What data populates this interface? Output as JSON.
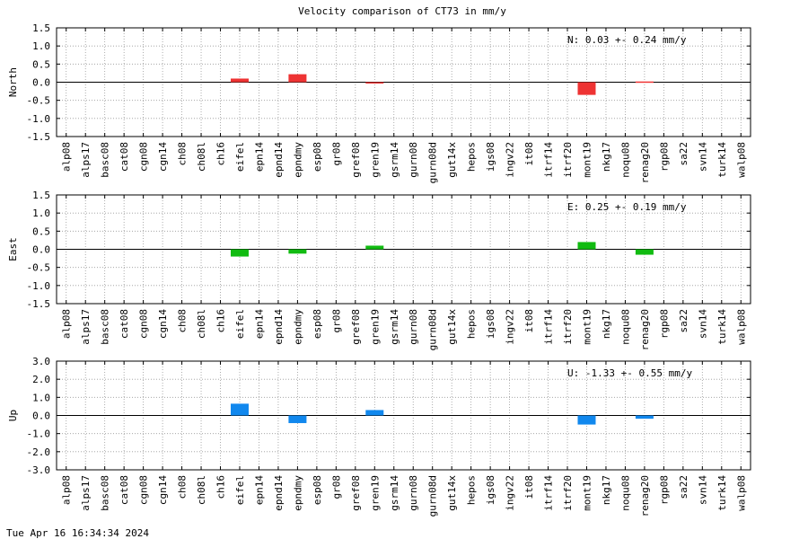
{
  "chart_data": {
    "title": "Velocity comparison of CT73 in mm/y",
    "type": "bar",
    "categories": [
      "alp08",
      "alps17",
      "basc08",
      "cat08",
      "cgn08",
      "cgn14",
      "ch08",
      "ch08l",
      "ch16",
      "eifel",
      "epn14",
      "epnd14",
      "epndmy",
      "esp08",
      "gr08",
      "gref08",
      "gren19",
      "gsrm14",
      "gurn08",
      "gurn08d",
      "gut14x",
      "hepos",
      "igs08",
      "ingv22",
      "it08",
      "itrf14",
      "itrf20",
      "mont19",
      "nkg17",
      "noqu08",
      "renag20",
      "rgp08",
      "sa22",
      "svn14",
      "turk14",
      "walp08"
    ],
    "grid": true,
    "panels": [
      {
        "ylabel": "North",
        "ylim": [
          -1.5,
          1.5
        ],
        "yticks": [
          "1.5",
          "1.0",
          "0.5",
          "0.0",
          "-0.5",
          "-1.0",
          "-1.5"
        ],
        "color": "#ee3333",
        "annotation": "N:   0.03 +-  0.24 mm/y",
        "values": [
          null,
          null,
          null,
          null,
          null,
          null,
          null,
          null,
          null,
          0.1,
          null,
          null,
          0.22,
          null,
          null,
          null,
          -0.02,
          null,
          null,
          null,
          null,
          null,
          null,
          null,
          null,
          null,
          null,
          -0.35,
          null,
          null,
          0.02,
          null,
          null,
          null,
          null,
          null
        ]
      },
      {
        "ylabel": "East",
        "ylim": [
          -1.5,
          1.5
        ],
        "yticks": [
          "1.5",
          "1.0",
          "0.5",
          "0.0",
          "-0.5",
          "-1.0",
          "-1.5"
        ],
        "color": "#11bb11",
        "annotation": "E:   0.25 +-  0.19 mm/y",
        "values": [
          null,
          null,
          null,
          null,
          null,
          null,
          null,
          null,
          null,
          -0.2,
          null,
          null,
          -0.12,
          null,
          null,
          null,
          0.1,
          null,
          null,
          null,
          null,
          null,
          null,
          null,
          null,
          null,
          null,
          0.2,
          null,
          null,
          -0.15,
          null,
          null,
          null,
          null,
          null
        ]
      },
      {
        "ylabel": "Up",
        "ylim": [
          -3.0,
          3.0
        ],
        "yticks": [
          "3.0",
          "2.0",
          "1.0",
          "0.0",
          "-1.0",
          "-2.0",
          "-3.0"
        ],
        "color": "#1188ee",
        "annotation": "U:  -1.33 +-  0.55 mm/y",
        "values": [
          null,
          null,
          null,
          null,
          null,
          null,
          null,
          null,
          null,
          0.65,
          null,
          null,
          -0.42,
          null,
          null,
          null,
          0.3,
          null,
          null,
          null,
          null,
          null,
          null,
          null,
          null,
          null,
          null,
          -0.5,
          null,
          null,
          -0.18,
          null,
          null,
          null,
          null,
          null
        ]
      }
    ]
  },
  "footer": {
    "timestamp": "Tue Apr 16 16:34:34 2024"
  }
}
